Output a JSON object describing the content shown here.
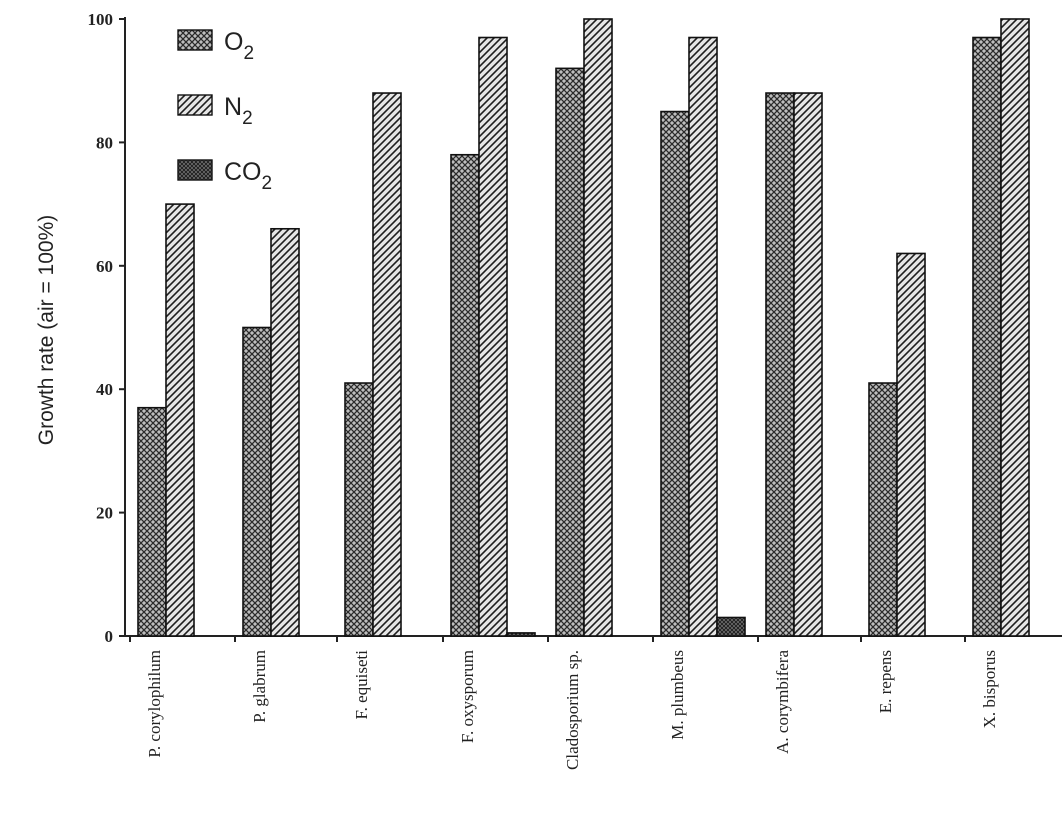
{
  "chart_data": {
    "type": "bar",
    "ylabel": "Growth rate (air = 100%)",
    "xlabel": "",
    "ylim": [
      0,
      100
    ],
    "yticks": [
      0,
      20,
      40,
      60,
      80,
      100
    ],
    "legend_position": "top-left",
    "categories": [
      "P. corylophilum",
      "P. glabrum",
      "F. equiseti",
      "F. oxysporum",
      "Cladosporium sp.",
      "M. plumbeus",
      "A. corymbifera",
      "E. repens",
      "X. bisporus"
    ],
    "series": [
      {
        "name": "O2",
        "sub": "2",
        "base": "O",
        "pattern": "crosshatch",
        "color": "#9a9a9a",
        "values": [
          37,
          50,
          41,
          78,
          92,
          85,
          88,
          41,
          97
        ]
      },
      {
        "name": "N2",
        "sub": "2",
        "base": "N",
        "pattern": "diagonal",
        "color": "#c8c8c8",
        "values": [
          70,
          66,
          88,
          97,
          100,
          97,
          88,
          62,
          100
        ]
      },
      {
        "name": "CO2",
        "sub": "2",
        "base": "CO",
        "pattern": "dark",
        "color": "#333333",
        "values": [
          0,
          0,
          0,
          0.5,
          0,
          3,
          0,
          0,
          0
        ]
      }
    ]
  }
}
